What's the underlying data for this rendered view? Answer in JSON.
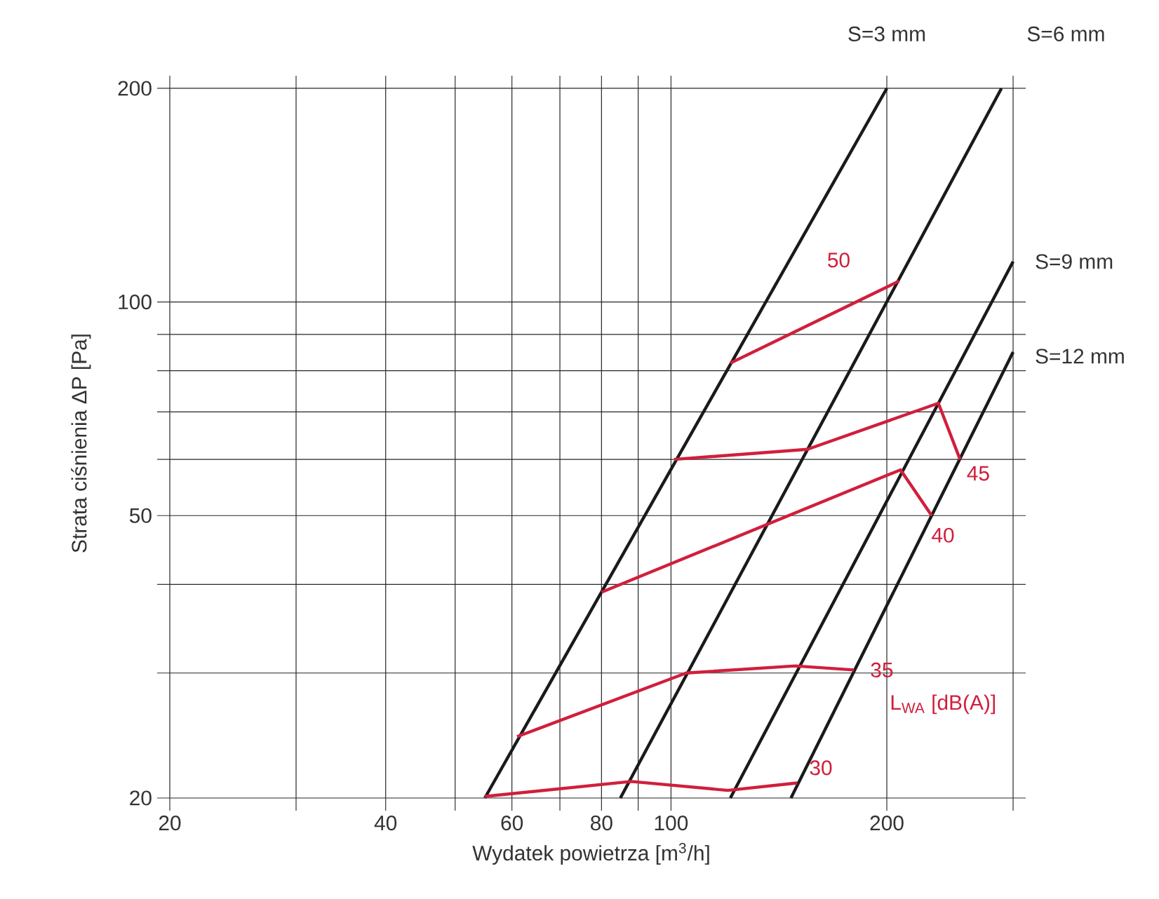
{
  "chart_data": {
    "type": "line",
    "xlabel": "Wydatek powietrza [m$^{3}$/h]",
    "ylabel": "Strata ciśnienia ΔP [Pa]",
    "log": "xy",
    "grid": true,
    "xlim": [
      20,
      300
    ],
    "ylim": [
      20,
      200
    ],
    "xticks": [
      20,
      {
        "value": 30,
        "label": null
      },
      40,
      {
        "value": 50,
        "label": null
      },
      60,
      {
        "value": 70,
        "label": null
      },
      80,
      {
        "value": 90,
        "label": null
      },
      100,
      200,
      {
        "value": 300,
        "label": null
      }
    ],
    "yticks": [
      20,
      {
        "value": 30,
        "label": null
      },
      {
        "value": 40,
        "label": null
      },
      50,
      {
        "value": 60,
        "label": null
      },
      {
        "value": 70,
        "label": null
      },
      {
        "value": 80,
        "label": null
      },
      {
        "value": 90,
        "label": null
      },
      100,
      200
    ],
    "annotations": [
      "L$_{WA}$ [dB(A)]"
    ],
    "series": [
      {
        "name": "S=3 mm",
        "color": "#1a1a1a",
        "x": [
          55,
          200
        ],
        "values": [
          20,
          200
        ]
      },
      {
        "name": "S=6 mm",
        "color": "#1a1a1a",
        "x": [
          85,
          289
        ],
        "values": [
          20,
          200
        ]
      },
      {
        "name": "S=9 mm",
        "color": "#1a1a1a",
        "x": [
          121,
          300
        ],
        "values": [
          20,
          114
        ]
      },
      {
        "name": "S=12 mm",
        "color": "#1a1a1a",
        "x": [
          147,
          300
        ],
        "values": [
          20,
          85
        ]
      },
      {
        "name": "50",
        "color": "#d01f3c",
        "x": [
          121,
          208
        ],
        "values": [
          82,
          107
        ]
      },
      {
        "name": "45",
        "color": "#d01f3c",
        "x": [
          101,
          155,
          236,
          253
        ],
        "values": [
          60,
          62,
          72,
          60
        ]
      },
      {
        "name": "40",
        "color": "#d01f3c",
        "x": [
          80,
          209,
          231
        ],
        "values": [
          39,
          58,
          50
        ]
      },
      {
        "name": "35",
        "color": "#d01f3c",
        "x": [
          61,
          105,
          149,
          180
        ],
        "values": [
          24.4,
          30,
          30.7,
          30.3
        ]
      },
      {
        "name": "30",
        "color": "#d01f3c",
        "x": [
          55,
          88,
          120,
          150
        ],
        "values": [
          20.1,
          21.1,
          20.5,
          21
        ]
      }
    ]
  }
}
